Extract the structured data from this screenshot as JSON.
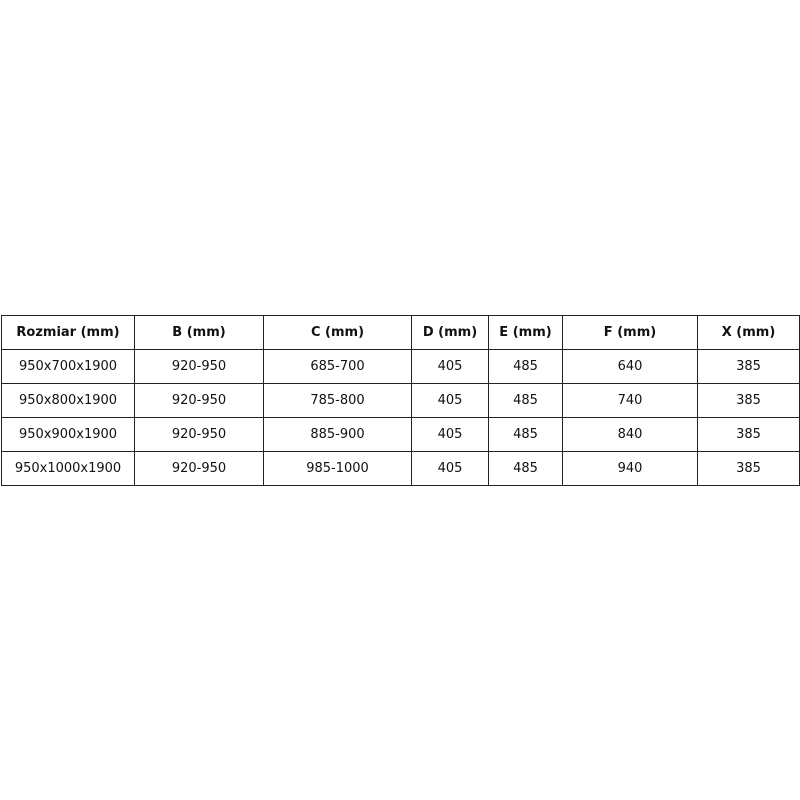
{
  "table": {
    "headers": [
      "Rozmiar (mm)",
      "B (mm)",
      "C (mm)",
      "D (mm)",
      "E (mm)",
      "F (mm)",
      "X (mm)"
    ],
    "rows": [
      [
        "950x700x1900",
        "920-950",
        "685-700",
        "405",
        "485",
        "640",
        "385"
      ],
      [
        "950x800x1900",
        "920-950",
        "785-800",
        "405",
        "485",
        "740",
        "385"
      ],
      [
        "950x900x1900",
        "920-950",
        "885-900",
        "405",
        "485",
        "840",
        "385"
      ],
      [
        "950x1000x1900",
        "920-950",
        "985-1000",
        "405",
        "485",
        "940",
        "385"
      ]
    ]
  }
}
